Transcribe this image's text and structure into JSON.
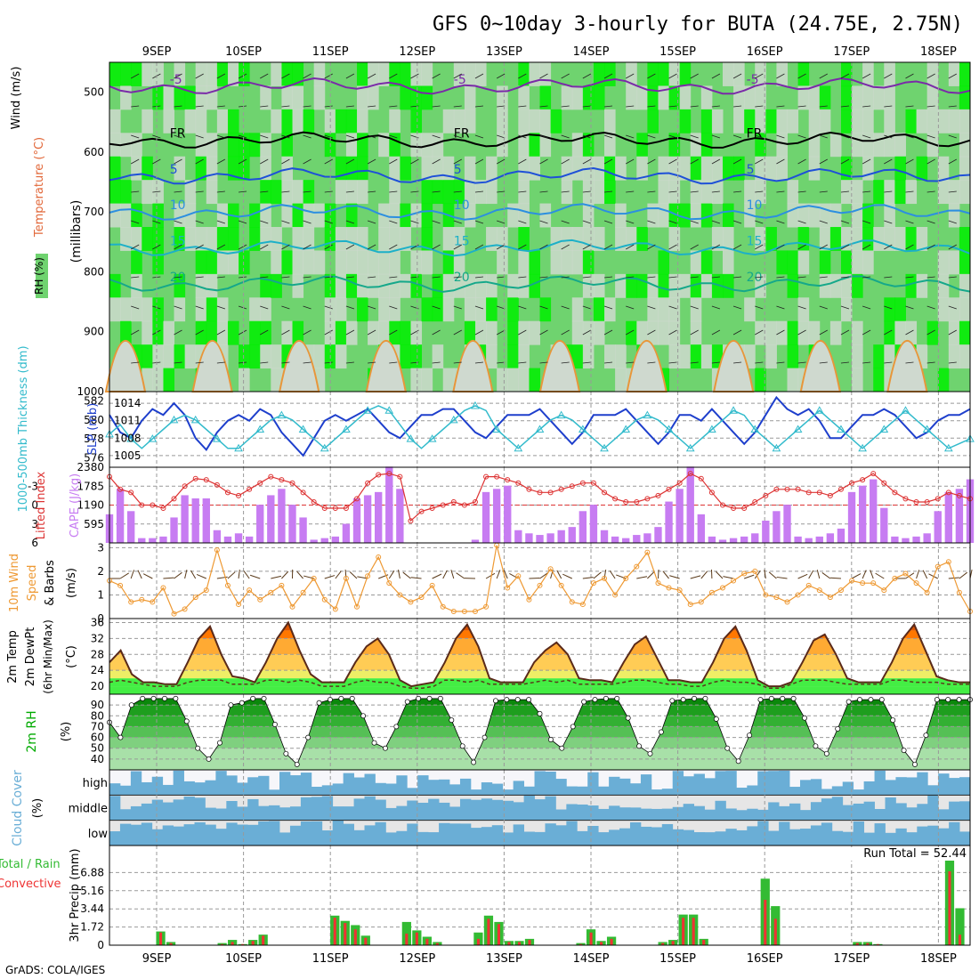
{
  "title": "GFS 0~10day 3-hourly for BUTA (24.75E, 2.75N)",
  "credit": "GrADS: COLA/IGES",
  "dates": [
    "9SEP",
    "10SEP",
    "11SEP",
    "12SEP",
    "13SEP",
    "14SEP",
    "15SEP",
    "16SEP",
    "17SEP",
    "18SEP"
  ],
  "colors": {
    "rh_light": "#cfd9cf",
    "rh_mid": "#6fd36f",
    "rh_bright": "#00ee00",
    "cloud": "#6aaed6",
    "cloud_bg": "#e6e6e6",
    "precip_total": "#33bb33",
    "precip_conv": "#ee3333",
    "cape": "#c77cf2",
    "lifted": "#dd3333",
    "slp": "#1e3fcc",
    "thick": "#33bbcc",
    "wind10": "#ee9933",
    "t2m_fill": "#ff6a00",
    "rh2m": "#00aa00"
  },
  "chart_data": [
    {
      "type": "heatmap",
      "panel": "Upper air",
      "ylabel": "(millibars)",
      "legend": [
        "RH (%)",
        "Temperature (°C)",
        "Wind (m/s)"
      ],
      "yticks": [
        "500",
        "600",
        "700",
        "800",
        "900",
        "1000"
      ],
      "ylim": [
        450,
        1000
      ],
      "isotherm_labels": [
        {
          "value": "-5",
          "pressure": 490
        },
        {
          "value": "FR",
          "pressure": 580
        },
        {
          "value": "5",
          "pressure": 640
        },
        {
          "value": "10",
          "pressure": 700
        },
        {
          "value": "15",
          "pressure": 760
        },
        {
          "value": "20",
          "pressure": 820
        }
      ]
    },
    {
      "type": "line",
      "panel": "SLP / Thickness",
      "ylabel_left": "1000-500mb Thickness (dm)",
      "ylabel_right": "SLP (mb)",
      "yticks_left": [
        "576",
        "578",
        "580",
        "582"
      ],
      "yticks_right": [
        "1005",
        "1008",
        "1011",
        "1014"
      ],
      "series": [
        {
          "name": "SLP (mb)",
          "values": [
            1012,
            1009,
            1008,
            1011,
            1013,
            1012,
            1014,
            1012,
            1008,
            1006,
            1009,
            1011,
            1012,
            1011,
            1013,
            1012,
            1009,
            1007,
            1005,
            1008,
            1011,
            1012,
            1011,
            1012,
            1013,
            1011,
            1009,
            1008,
            1010,
            1012,
            1012,
            1013,
            1013,
            1011,
            1009,
            1008,
            1010,
            1012,
            1012,
            1012,
            1013,
            1011,
            1009,
            1007,
            1009,
            1012,
            1012,
            1012,
            1013,
            1011,
            1009,
            1007,
            1009,
            1012,
            1012,
            1011,
            1013,
            1011,
            1009,
            1007,
            1009,
            1012,
            1015,
            1013,
            1012,
            1013,
            1011,
            1008,
            1008,
            1010,
            1012,
            1012,
            1013,
            1012,
            1010,
            1008,
            1009,
            1011,
            1012,
            1012,
            1013
          ]
        },
        {
          "name": "Thickness (dm)",
          "values": [
            578.5,
            579.5,
            578,
            577,
            578,
            579,
            580,
            580.5,
            580,
            579,
            578,
            577,
            577,
            578,
            579,
            580,
            580.5,
            580,
            579,
            578,
            577,
            578,
            579,
            580,
            581,
            581.5,
            581,
            579.5,
            578,
            577,
            578,
            579,
            580,
            581,
            581.5,
            581,
            579,
            578,
            577,
            578,
            579,
            580,
            580.5,
            580,
            579,
            578,
            577,
            578,
            579,
            580,
            580.5,
            580,
            579,
            578,
            577,
            578,
            579,
            580,
            581,
            580.5,
            579,
            578,
            577,
            578,
            579,
            580,
            581,
            580,
            579,
            578,
            577,
            578,
            579,
            580,
            581,
            580,
            579,
            578,
            577,
            577.5,
            578
          ]
        }
      ]
    },
    {
      "type": "bar",
      "panel": "Lifted Index / CAPE",
      "ylabel_left": "Lifted Index",
      "ylabel_right": "CAPE (J/kg)",
      "yticks_left": [
        "-3",
        "0",
        "3",
        "6"
      ],
      "yticks_right": [
        "595",
        "1190",
        "1785",
        "2380"
      ],
      "ylim_cape": [
        0,
        2380
      ],
      "ylim_li": [
        6,
        -6
      ],
      "series": [
        {
          "name": "CAPE (J/kg)",
          "values": [
            900,
            1700,
            1000,
            150,
            150,
            200,
            800,
            1500,
            1400,
            1400,
            400,
            200,
            300,
            200,
            1200,
            1500,
            1700,
            1200,
            800,
            100,
            150,
            200,
            600,
            1400,
            1500,
            1600,
            2400,
            1700,
            0,
            0,
            0,
            0,
            0,
            0,
            100,
            1600,
            1700,
            1800,
            400,
            300,
            250,
            300,
            400,
            500,
            1000,
            1200,
            400,
            200,
            150,
            250,
            300,
            500,
            1300,
            1700,
            2400,
            900,
            200,
            100,
            150,
            200,
            300,
            700,
            1000,
            1200,
            200,
            150,
            200,
            300,
            450,
            1600,
            1800,
            2000,
            1100,
            200,
            150,
            200,
            300,
            1000,
            1600,
            1700,
            2000
          ]
        },
        {
          "name": "Lifted Index",
          "values": [
            -4.5,
            -2.5,
            -2,
            0,
            0,
            0.5,
            -1,
            -3,
            -4.2,
            -4,
            -3.2,
            -2,
            -1.5,
            -2.5,
            -3.5,
            -4.5,
            -4,
            -3.5,
            -2,
            -0.5,
            0.5,
            0.5,
            0.5,
            -1,
            -3.5,
            -4.8,
            -5,
            -4.5,
            2.5,
            1,
            0.5,
            0,
            -0.5,
            0,
            -0.5,
            -4.5,
            -4.5,
            -4,
            -3.5,
            -2.5,
            -2,
            -2,
            -2.5,
            -3,
            -3.5,
            -3.5,
            -2,
            -1,
            -0.5,
            -0.5,
            -1,
            -1.5,
            -2.5,
            -3.5,
            -5,
            -4.2,
            -2,
            0,
            0.5,
            0.5,
            -0.5,
            -1.5,
            -2.5,
            -2.5,
            -2.5,
            -2,
            -2,
            -1.5,
            -2.5,
            -3.5,
            -4,
            -5,
            -3.5,
            -2,
            -1,
            -0.5,
            -0.5,
            -1,
            -2,
            -1.5,
            -1
          ]
        }
      ]
    },
    {
      "type": "line",
      "panel": "10m Wind",
      "ylabel": "10m Wind Speed & Barbs (m/s)",
      "yticks": [
        "0",
        "1",
        "2",
        "3"
      ],
      "ylim": [
        0,
        3
      ],
      "series": [
        {
          "name": "10m Wind Speed (m/s)",
          "values": [
            1.6,
            1.4,
            0.7,
            0.8,
            0.7,
            1.3,
            0.2,
            0.4,
            0.9,
            1.2,
            2.9,
            1.4,
            0.6,
            1.2,
            0.8,
            1.1,
            1.4,
            0.5,
            1.1,
            1.7,
            0.8,
            0.4,
            1.7,
            0.5,
            1.8,
            2.6,
            1.5,
            1.0,
            0.7,
            0.9,
            1.4,
            0.5,
            0.3,
            0.3,
            0.3,
            0.5,
            3.1,
            1.3,
            1.8,
            0.8,
            1.4,
            2.1,
            1.4,
            0.7,
            0.6,
            1.5,
            1.7,
            1.0,
            1.7,
            2.2,
            2.8,
            1.5,
            1.3,
            1.2,
            0.6,
            0.7,
            1.1,
            1.3,
            1.6,
            1.9,
            2.0,
            1.0,
            0.9,
            0.7,
            1.0,
            1.4,
            1.2,
            0.9,
            1.2,
            1.6,
            1.5,
            1.5,
            1.2,
            1.7,
            1.9,
            1.5,
            1.1,
            2.2,
            2.4,
            1.1,
            0.3
          ]
        }
      ]
    },
    {
      "type": "area",
      "panel": "2m Temp",
      "ylabel": "2m Temp 2m DewPt (6hr Min/Max) (°C)",
      "yticks": [
        "20",
        "24",
        "28",
        "32",
        "36"
      ],
      "ylim": [
        18,
        37
      ],
      "series": [
        {
          "name": "2m Temp (°C)",
          "values": [
            26,
            29,
            23,
            21,
            21,
            20.5,
            20.5,
            26,
            32,
            35,
            28,
            22.5,
            22,
            21,
            26,
            32,
            36,
            29,
            23,
            21,
            21,
            21,
            26,
            30,
            32,
            28,
            21.5,
            20,
            20.5,
            21,
            26,
            32,
            35.5,
            30,
            22,
            21,
            21,
            21,
            26,
            29,
            31,
            28,
            22,
            21.5,
            21.5,
            21,
            26,
            30.5,
            32.5,
            27,
            21.5,
            21.5,
            21,
            21,
            26,
            32,
            35,
            29,
            21.5,
            20,
            20,
            21,
            26,
            31.5,
            33,
            28,
            22,
            21,
            21,
            21,
            26,
            32,
            35.5,
            29,
            22.5,
            21.5,
            21,
            21
          ]
        },
        {
          "name": "2m DewPt (°C)",
          "values": [
            21,
            21.5,
            21,
            20.5,
            20,
            20,
            20,
            21,
            21.5,
            21.5,
            21.5,
            20.5,
            20.5,
            20.5,
            21.5,
            21.5,
            21,
            21.5,
            21,
            20,
            20,
            20,
            21,
            21.5,
            21,
            21,
            20,
            19.5,
            19.5,
            20,
            21.5,
            21.5,
            21,
            21.5,
            20.5,
            20.5,
            20.5,
            20.5,
            21,
            21.5,
            21,
            21.5,
            20.5,
            20.5,
            20.5,
            20.5,
            21,
            21.5,
            21.5,
            21,
            20.5,
            20.5,
            20,
            20,
            21,
            21.5,
            21,
            21,
            20.5,
            19.5,
            19.5,
            20.5,
            21.5,
            21.5,
            21.5,
            21,
            20.5,
            20.5,
            20.5,
            20.5,
            21.5,
            21.5,
            21,
            21,
            21,
            20.5,
            20.5,
            20.5
          ]
        }
      ]
    },
    {
      "type": "area",
      "panel": "2m RH",
      "ylabel": "2m RH (%)",
      "yticks": [
        "40",
        "50",
        "60",
        "70",
        "80",
        "90"
      ],
      "ylim": [
        30,
        100
      ],
      "series": [
        {
          "name": "2m RH (%)",
          "values": [
            74,
            60,
            90,
            96,
            96,
            96,
            96,
            75,
            50,
            40,
            55,
            90,
            92,
            96,
            96,
            72,
            45,
            35,
            60,
            92,
            95,
            96,
            96,
            80,
            55,
            50,
            70,
            93,
            96,
            96,
            96,
            76,
            52,
            37,
            60,
            94,
            95,
            95,
            95,
            82,
            58,
            50,
            70,
            93,
            95,
            96,
            96,
            78,
            52,
            45,
            65,
            94,
            95,
            96,
            96,
            77,
            50,
            38,
            62,
            95,
            96,
            96,
            96,
            78,
            52,
            45,
            68,
            93,
            95,
            95,
            95,
            76,
            48,
            35,
            62,
            95,
            95,
            95,
            95
          ]
        }
      ]
    },
    {
      "type": "area",
      "panel": "Cloud Cover",
      "ylabel": "Cloud Cover (%)",
      "levels": [
        "high",
        "middle",
        "low"
      ]
    },
    {
      "type": "bar",
      "panel": "3hr Precip",
      "ylabel": "3hr Precip (mm)",
      "legend_left": [
        "Total / Rain",
        "Convective"
      ],
      "run_total_label": "Run Total = 52.44",
      "yticks": [
        "0",
        "1.72",
        "3.44",
        "5.16",
        "6.88"
      ],
      "ylim": [
        0,
        8.6
      ],
      "series": [
        {
          "name": "Total",
          "values": [
            0,
            0,
            0,
            0,
            0,
            1.3,
            0.3,
            0,
            0,
            0,
            0,
            0.2,
            0.5,
            0.1,
            0.5,
            1,
            0,
            0,
            0,
            0,
            0,
            0,
            2.8,
            2.3,
            1.9,
            0.9,
            0,
            0,
            0,
            2.2,
            1.4,
            0.8,
            0.3,
            0,
            0,
            0,
            1.2,
            2.8,
            2.2,
            0.4,
            0.4,
            0.6,
            0,
            0,
            0,
            0,
            0.2,
            1.5,
            0.4,
            0.8,
            0,
            0,
            0,
            0,
            0.3,
            0.5,
            2.9,
            2.9,
            0.6,
            0,
            0,
            0,
            0,
            0,
            6.3,
            3.7,
            0,
            0,
            0,
            0,
            0,
            0,
            0,
            0.3,
            0.3,
            0.1,
            0,
            0,
            0,
            0,
            0,
            0,
            8.6,
            3.5,
            0
          ]
        },
        {
          "name": "Convective",
          "values": [
            0,
            0,
            0,
            0,
            0,
            1.2,
            0.2,
            0,
            0,
            0,
            0,
            0.1,
            0.3,
            0.1,
            0.4,
            0.9,
            0,
            0,
            0,
            0,
            0,
            0,
            2.6,
            2.1,
            1.5,
            0.7,
            0,
            0,
            0,
            1.1,
            1.2,
            0.6,
            0.2,
            0,
            0,
            0,
            0.6,
            2.5,
            2,
            0.3,
            0.3,
            0.5,
            0,
            0,
            0,
            0,
            0.1,
            1.2,
            0.3,
            0.6,
            0,
            0,
            0,
            0,
            0.2,
            0.4,
            2.6,
            2.6,
            0.5,
            0,
            0,
            0,
            0,
            0,
            4.3,
            2.5,
            0,
            0,
            0,
            0,
            0,
            0,
            0,
            0.2,
            0.2,
            0.1,
            0,
            0,
            0,
            0,
            0,
            0,
            7,
            1,
            0
          ]
        }
      ]
    }
  ]
}
